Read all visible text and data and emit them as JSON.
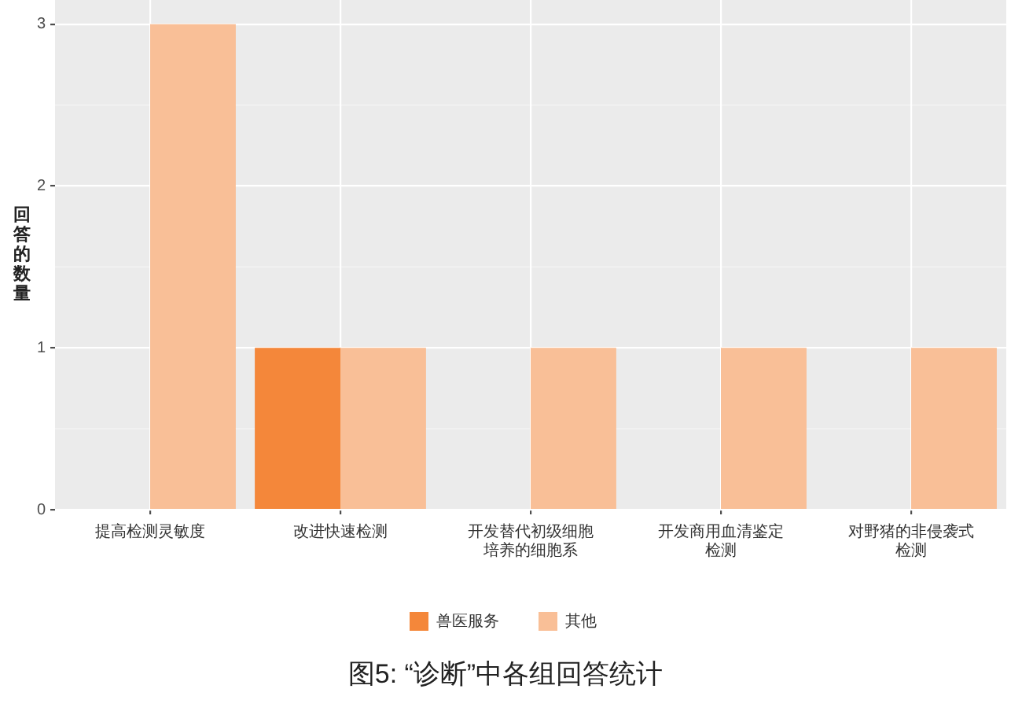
{
  "chart_data": {
    "type": "bar",
    "title": "图5: “诊断”中各组回答统计",
    "ylabel": "回答的数量",
    "categories": [
      "提高检测灵敏度",
      "改进快速检测",
      "开发替代初级细胞培养的细胞系",
      "开发商用血清鉴定检测",
      "对野猪的非侵袭式检测"
    ],
    "series": [
      {
        "name": "兽医服务",
        "color": "#f4873a",
        "values": [
          null,
          1,
          null,
          null,
          null
        ]
      },
      {
        "name": "其他",
        "color": "#f9bf97",
        "values": [
          3,
          1,
          1,
          1,
          1
        ]
      }
    ],
    "ylim": [
      0,
      3.15
    ],
    "yticks": [
      0,
      1,
      2,
      3
    ],
    "grid": true,
    "legend": "bottom"
  }
}
